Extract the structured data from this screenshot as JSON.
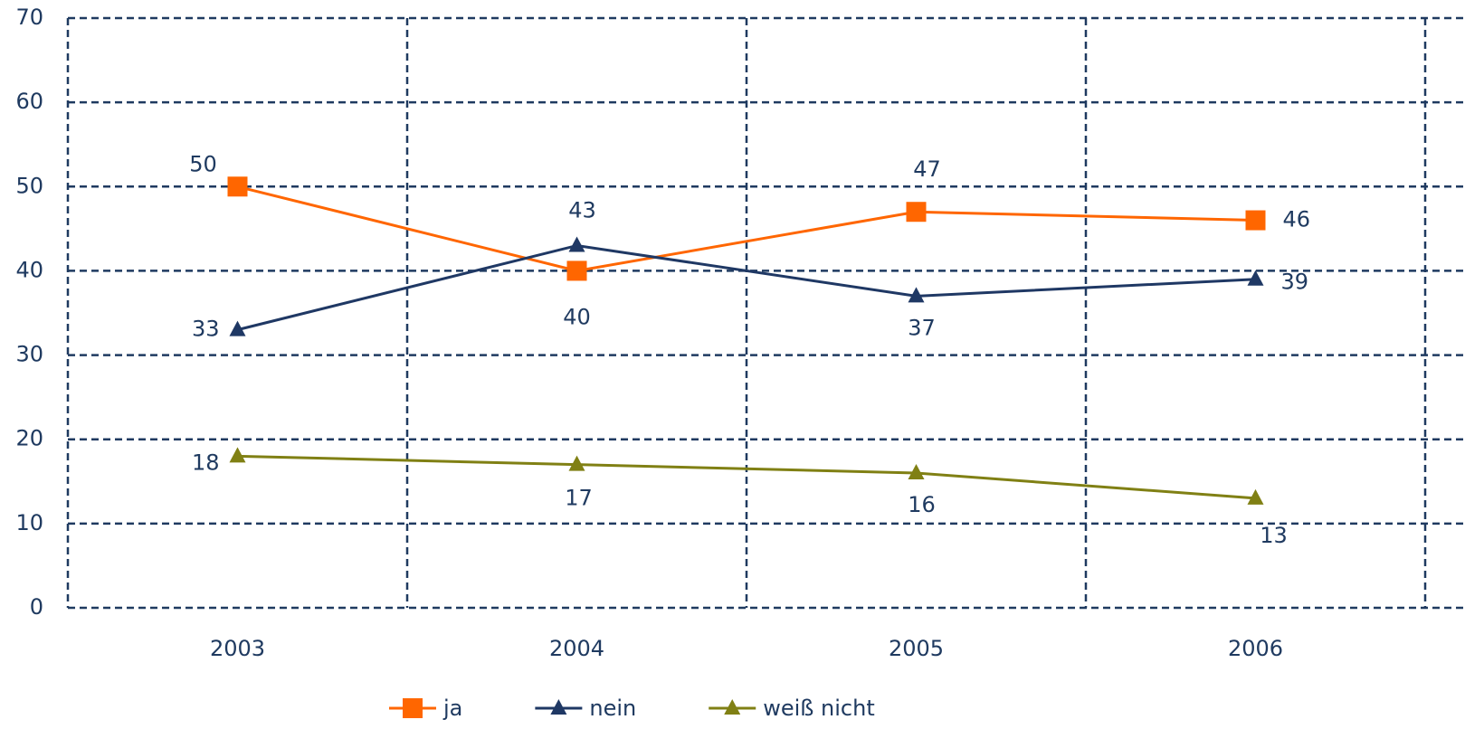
{
  "chart_data": {
    "type": "line",
    "categories": [
      "2003",
      "2004",
      "2005",
      "2006"
    ],
    "series": [
      {
        "name": "ja",
        "color": "#ff6600",
        "marker": "square",
        "values": [
          50,
          40,
          47,
          46
        ]
      },
      {
        "name": "nein",
        "color": "#1f3864",
        "marker": "triangle",
        "values": [
          33,
          43,
          37,
          39
        ]
      },
      {
        "name": "weiß nicht",
        "color": "#808014",
        "marker": "triangle",
        "values": [
          18,
          17,
          16,
          13
        ]
      }
    ],
    "ylim": [
      0,
      70
    ],
    "yticks": [
      0,
      10,
      20,
      30,
      40,
      50,
      60,
      70
    ],
    "grid": true,
    "legend": "bottom"
  }
}
